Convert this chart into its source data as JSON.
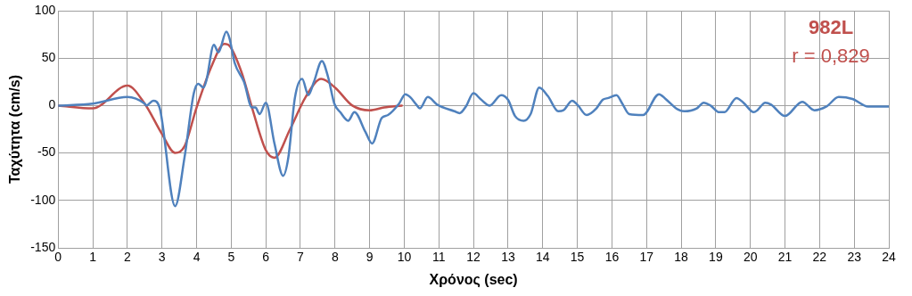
{
  "chart_data": {
    "type": "line",
    "xlabel": "Χρόνος (sec)",
    "ylabel": "Ταχύτητα (cm/s)",
    "annotations": [
      "982L",
      "r = 0,829"
    ],
    "xlim": [
      0,
      24
    ],
    "xticks": [
      0,
      1,
      2,
      3,
      4,
      5,
      6,
      7,
      8,
      9,
      10,
      11,
      12,
      13,
      14,
      15,
      16,
      17,
      18,
      19,
      20,
      21,
      22,
      23,
      24
    ],
    "ylim": [
      -150,
      100
    ],
    "yticks": [
      -150,
      -100,
      -50,
      0,
      50,
      100
    ],
    "grid": true,
    "legend": false,
    "marker": "none",
    "line_style": "solid",
    "series": [
      {
        "color": "#4f81bd",
        "x": [
          0,
          1,
          2,
          2.5,
          2.55,
          2.75,
          2.93,
          3.38,
          3.65,
          3.92,
          4.05,
          4.2,
          4.28,
          4.5,
          4.63,
          4.86,
          4.95,
          5.1,
          5.37,
          5.6,
          5.7,
          5.82,
          6.0,
          6.25,
          6.5,
          6.65,
          6.84,
          7.05,
          7.23,
          7.39,
          7.62,
          7.8,
          7.98,
          8.15,
          8.38,
          8.56,
          8.88,
          9.07,
          9.35,
          9.53,
          9.85,
          10.03,
          10.17,
          10.35,
          10.45,
          10.68,
          10.95,
          11.45,
          11.6,
          11.78,
          12.0,
          12.2,
          12.47,
          12.8,
          13.0,
          13.2,
          13.45,
          13.65,
          13.9,
          14.15,
          14.45,
          14.6,
          14.85,
          15.0,
          15.27,
          15.55,
          15.73,
          15.9,
          16.13,
          16.3,
          16.5,
          16.9,
          17.36,
          17.55,
          17.9,
          18.1,
          18.45,
          18.65,
          18.85,
          19.1,
          19.25,
          19.6,
          19.8,
          20.1,
          20.2,
          20.43,
          20.6,
          21.0,
          21.5,
          21.85,
          22.2,
          22.55,
          22.95,
          23.4,
          24
        ],
        "values": [
          0,
          2,
          9,
          2,
          0,
          5,
          -2,
          -106,
          -55,
          13,
          23,
          19,
          26,
          64,
          56,
          78,
          71,
          45,
          25,
          -2,
          -2,
          -9,
          3,
          -40,
          -74,
          -55,
          8,
          28,
          11,
          25,
          47,
          30,
          2,
          -7,
          -16,
          -7,
          -28,
          -40,
          -13,
          -10,
          2,
          12,
          9,
          1,
          -3,
          9,
          1,
          -6,
          -8,
          -1,
          13,
          7,
          0,
          11,
          6,
          -11,
          -16,
          -9,
          19,
          10,
          -6,
          -5,
          5,
          1,
          -10,
          -3,
          6,
          8,
          11,
          2,
          -9,
          -10,
          12,
          7,
          -4,
          -6,
          -3,
          3,
          0,
          -7,
          -7,
          8,
          3,
          -7,
          -5,
          3,
          1,
          -11,
          4,
          -5,
          -1,
          9,
          7,
          -1,
          -1
        ]
      },
      {
        "color": "#c0504d",
        "x": [
          0,
          1,
          2,
          2.5,
          3,
          3.38,
          3.65,
          4,
          4.45,
          4.8,
          4.95,
          5.3,
          5.6,
          6.0,
          6.25,
          6.7,
          7.15,
          7.6,
          8.0,
          8.5,
          9.0,
          9.42,
          9.93
        ],
        "values": [
          0,
          -3,
          21,
          2,
          -30,
          -50,
          -43,
          -2,
          43,
          65,
          63,
          35,
          -2,
          -47,
          -55,
          -25,
          9,
          28,
          19,
          0,
          -5,
          -2,
          0
        ]
      }
    ]
  }
}
